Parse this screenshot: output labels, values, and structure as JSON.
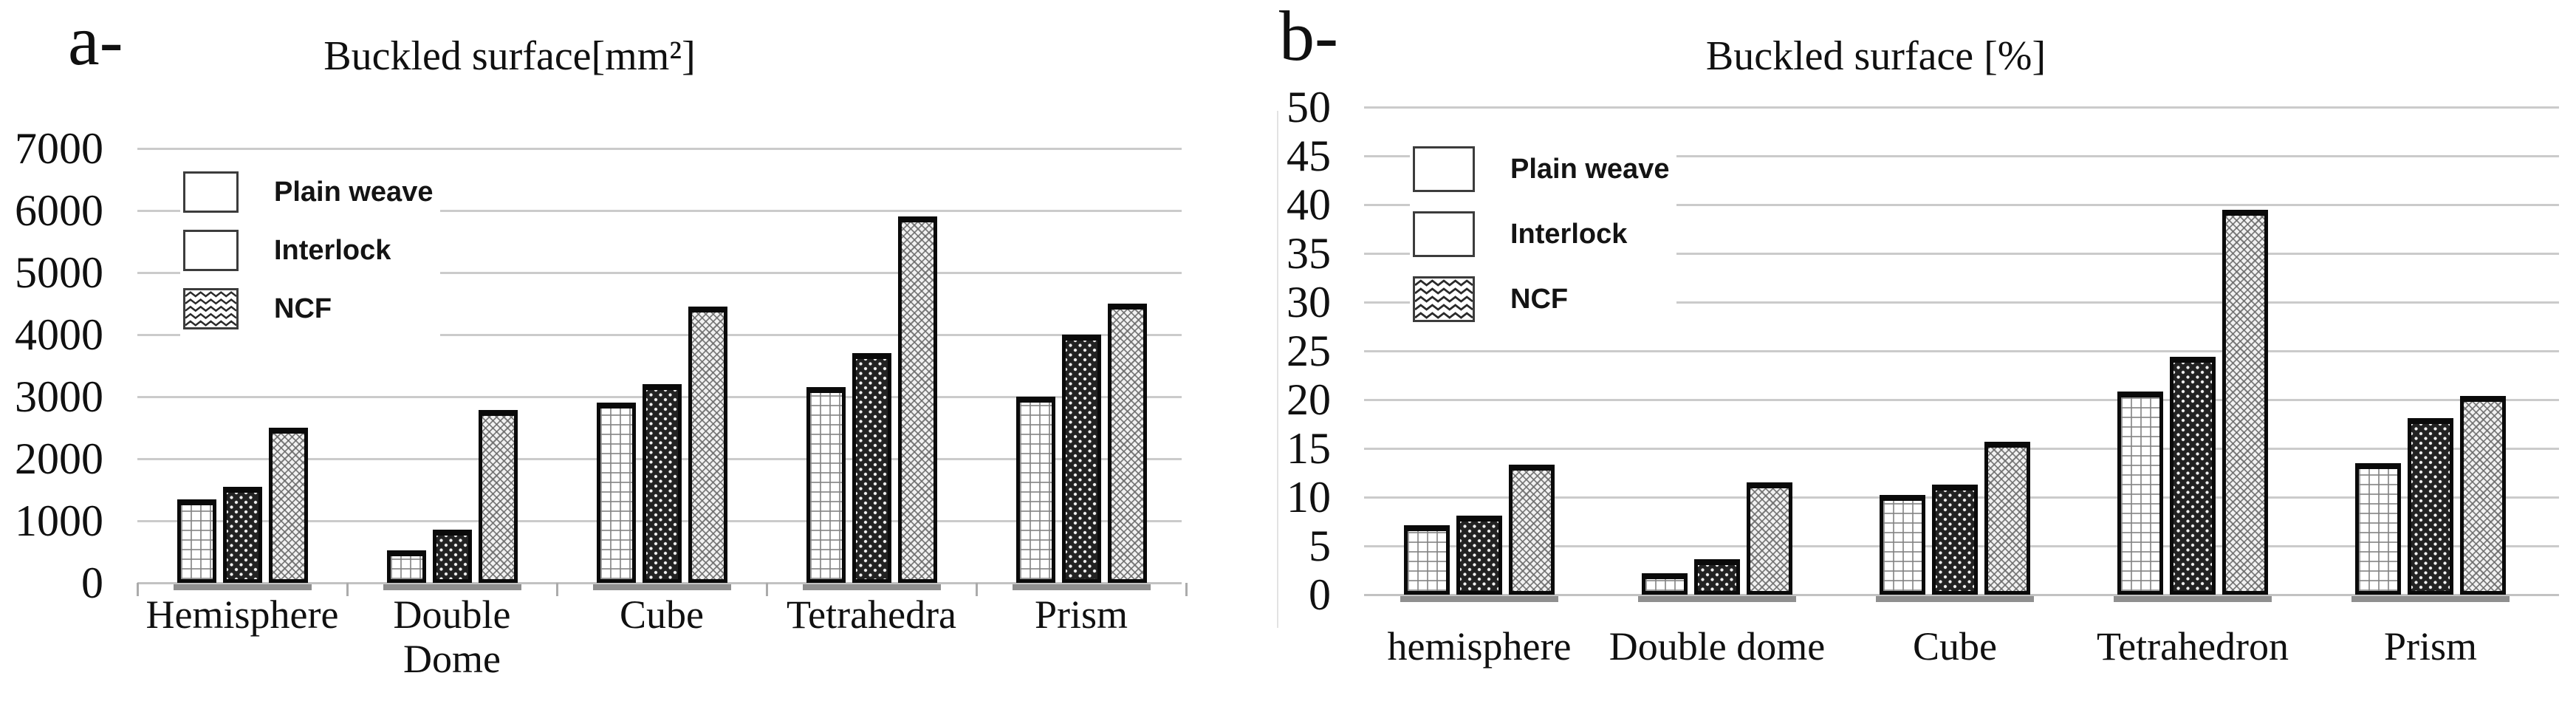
{
  "colors": {
    "background": "#ffffff",
    "bar_outline": "#0a0a0a",
    "interlock_fill": "#222222",
    "gridline": "#cbcbcb",
    "bar_base_shadow": "#8f8f8f",
    "text": "#101010"
  },
  "legend_swatches": [
    {
      "name": "plain-weave-pattern-icon",
      "pattern": "white grid"
    },
    {
      "name": "interlock-pattern-icon",
      "pattern": "dark with white dots"
    },
    {
      "name": "ncf-pattern-icon",
      "pattern": "zigzag chevrons"
    }
  ],
  "chart_data": [
    {
      "type": "bar",
      "panel_label": "a-",
      "title": "Buckled surface[mm²]",
      "unit": "mm²",
      "categories": [
        "Hemisphere",
        "Double\nDome",
        "Cube",
        "Tetrahedra",
        "Prism"
      ],
      "series": [
        {
          "name": "Plain weave",
          "values": [
            1350,
            520,
            2900,
            3150,
            3000
          ]
        },
        {
          "name": "Interlock",
          "values": [
            1550,
            860,
            3200,
            3700,
            4000
          ]
        },
        {
          "name": "NCF",
          "values": [
            2500,
            2780,
            4450,
            5900,
            4500
          ]
        }
      ],
      "ylim": [
        0,
        7000
      ],
      "ytick_step": 1000,
      "grid": true,
      "legend_position": "inside-top-left",
      "legend": [
        "Plain weave",
        "Interlock",
        "NCF"
      ]
    },
    {
      "type": "bar",
      "panel_label": "b-",
      "title": "Buckled surface [%]",
      "unit": "%",
      "categories": [
        "hemisphere",
        "Double dome",
        "Cube",
        "Tetrahedron",
        "Prism"
      ],
      "series": [
        {
          "name": "Plain weave",
          "values": [
            7.1,
            2.2,
            10.2,
            20.8,
            13.5
          ]
        },
        {
          "name": "Interlock",
          "values": [
            8.1,
            3.6,
            11.3,
            24.4,
            18.1
          ]
        },
        {
          "name": "NCF",
          "values": [
            13.3,
            11.5,
            15.7,
            39.5,
            20.4
          ]
        }
      ],
      "ylim": [
        0,
        50
      ],
      "ytick_step": 5,
      "grid": true,
      "legend_position": "inside-top-left",
      "legend": [
        "Plain weave",
        "Interlock",
        "NCF"
      ]
    }
  ]
}
